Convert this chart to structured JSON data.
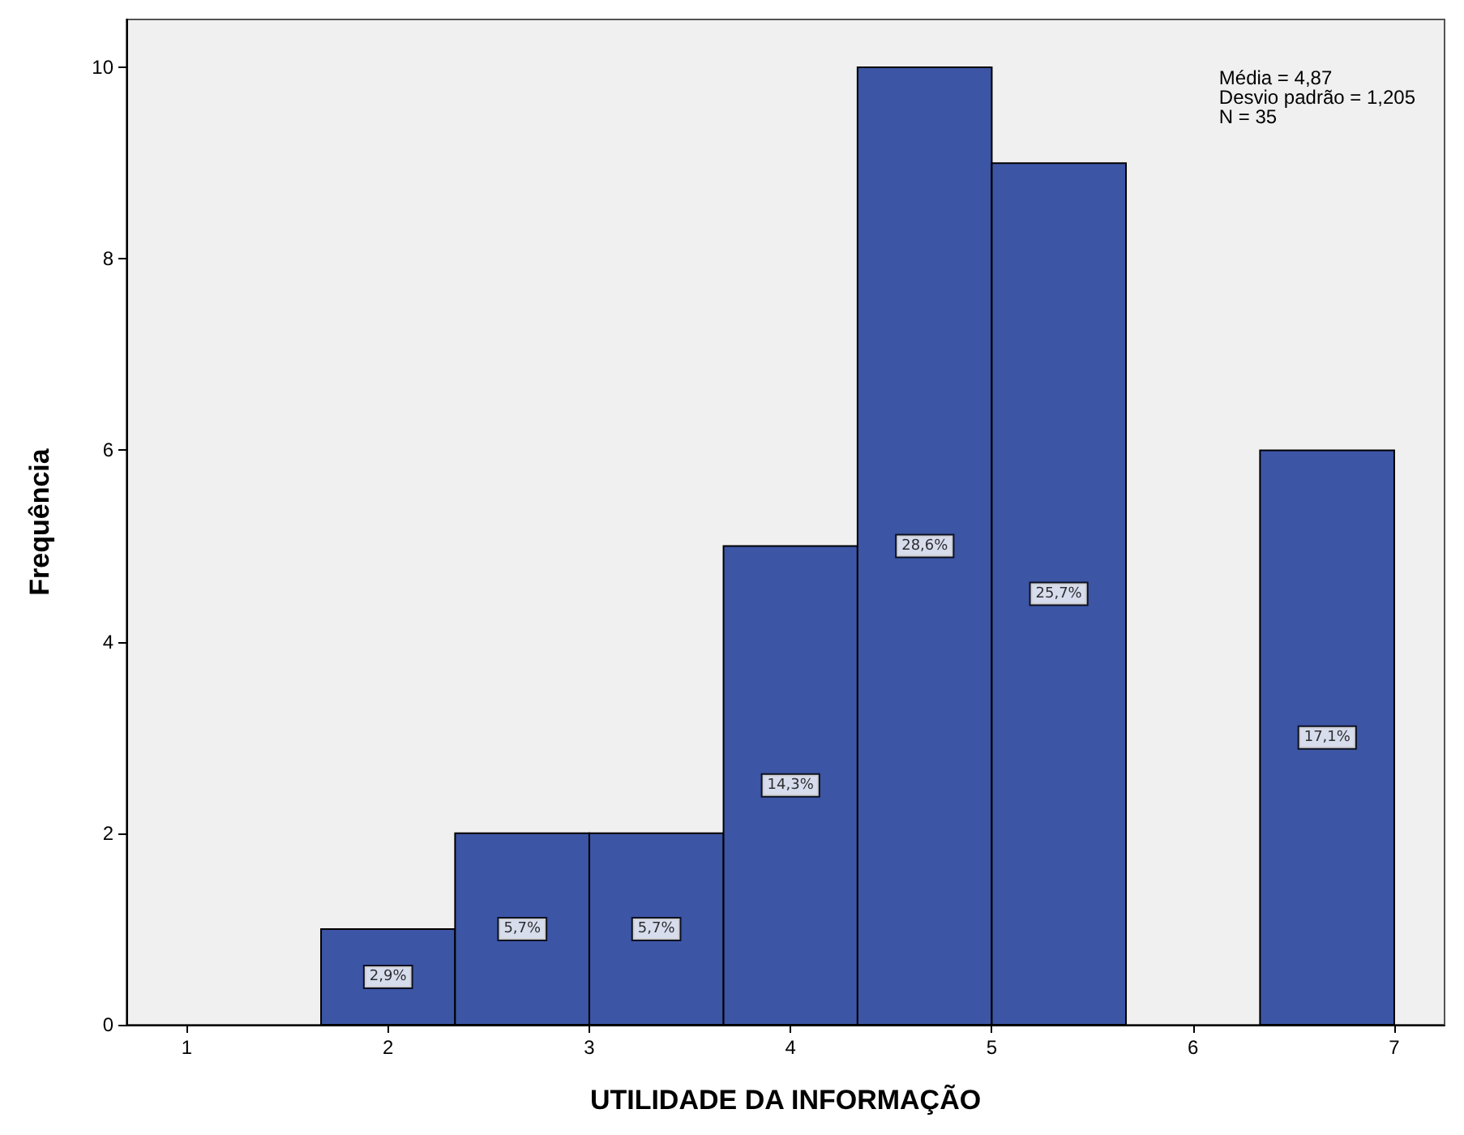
{
  "chart_data": {
    "type": "histogram",
    "xlabel": "UTILIDADE DA INFORMAÇÃO",
    "ylabel": "Frequência",
    "bins": [
      1.667,
      2.333,
      3,
      3.667,
      4.333,
      5,
      5.667,
      6.333,
      7
    ],
    "values": [
      1,
      2,
      2,
      5,
      10,
      9,
      0,
      6
    ],
    "color": "#3c55a5",
    "xlim": [
      0.7,
      7.25
    ],
    "ylim": [
      0,
      10.5
    ],
    "xticks": [
      1,
      2,
      3,
      4,
      5,
      6,
      7
    ],
    "yticks": [
      0,
      2,
      4,
      6,
      8,
      10
    ],
    "grid": false,
    "annotations": [
      "Média = 4,87",
      "Desvio padrão = 1,205",
      "N = 35",
      {
        "text": "2,9%",
        "x": 2,
        "y": 0.5
      },
      {
        "text": "5,7%",
        "x": 2.667,
        "y": 1
      },
      {
        "text": "5,7%",
        "x": 3.333,
        "y": 1
      },
      {
        "text": "14,3%",
        "x": 4,
        "y": 2.5
      },
      {
        "text": "28,6%",
        "x": 4.667,
        "y": 5
      },
      {
        "text": "25,7%",
        "x": 5.333,
        "y": 4.5
      },
      {
        "text": "17,1%",
        "x": 6.667,
        "y": 3
      }
    ]
  }
}
